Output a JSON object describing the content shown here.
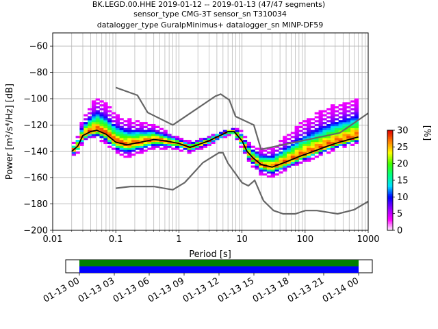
{
  "chart_data": [
    {
      "type": "heatmap",
      "title_lines": [
        "BK.LEGD.00.HHE   2019-01-12 -- 2019-01-13  (47/47 segments)",
        "sensor_type CMG-3T sensor_sn T310034",
        "datalogger_type GuralpMinimus+ datalogger_sn MINP-DF59"
      ],
      "xlabel": "Period [s]",
      "ylabel": "Power [m²/s⁴/Hz] [dB]",
      "xscale": "log",
      "xlim": [
        0.01,
        1000
      ],
      "ylim": [
        -200,
        -50
      ],
      "xticks": [
        {
          "v": 0.01,
          "label": "0.01"
        },
        {
          "v": 0.1,
          "label": "0.1"
        },
        {
          "v": 1,
          "label": "1"
        },
        {
          "v": 10,
          "label": "10"
        },
        {
          "v": 100,
          "label": "100"
        },
        {
          "v": 1000,
          "label": "1000"
        }
      ],
      "yticks": [
        -200,
        -180,
        -160,
        -140,
        -120,
        -100,
        -80,
        -60
      ],
      "grid": true,
      "colorbar": {
        "label": "[%]",
        "range": [
          0,
          30
        ],
        "ticks": [
          0,
          5,
          10,
          15,
          20,
          25,
          30
        ],
        "colors": [
          "#ffffff",
          "#ff00ff",
          "#9000ff",
          "#0000ff",
          "#00e0ff",
          "#00ff80",
          "#40ff00",
          "#ffff00",
          "#ff8000",
          "#e00000"
        ]
      },
      "noise_models": {
        "color": "#666666",
        "high": [
          [
            0.1,
            -91.5
          ],
          [
            0.22,
            -97.4
          ],
          [
            0.32,
            -110.5
          ],
          [
            0.8,
            -120
          ],
          [
            3.8,
            -98
          ],
          [
            4.6,
            -96.5
          ],
          [
            6.3,
            -101
          ],
          [
            7.9,
            -113.5
          ],
          [
            15.4,
            -120
          ],
          [
            20,
            -138.5
          ],
          [
            354.8,
            -126
          ],
          [
            1000,
            -111
          ]
        ],
        "low": [
          [
            0.1,
            -168
          ],
          [
            0.17,
            -166.7
          ],
          [
            0.4,
            -166.7
          ],
          [
            0.8,
            -169.2
          ],
          [
            1.24,
            -163.7
          ],
          [
            2.4,
            -148.6
          ],
          [
            4.3,
            -141.1
          ],
          [
            5,
            -141.1
          ],
          [
            6,
            -149
          ],
          [
            10,
            -163.8
          ],
          [
            12.6,
            -166.2
          ],
          [
            15.9,
            -162.1
          ],
          [
            21.9,
            -177.5
          ],
          [
            31.6,
            -185
          ],
          [
            45,
            -187.5
          ],
          [
            70,
            -187.5
          ],
          [
            101,
            -185
          ],
          [
            154,
            -185
          ],
          [
            328,
            -187.5
          ],
          [
            600,
            -184.4
          ],
          [
            1000,
            -178
          ]
        ]
      },
      "mode_curve": {
        "color": "#000000",
        "points": [
          [
            0.02,
            -140
          ],
          [
            0.025,
            -136
          ],
          [
            0.03,
            -128
          ],
          [
            0.04,
            -125
          ],
          [
            0.05,
            -124
          ],
          [
            0.07,
            -127
          ],
          [
            0.1,
            -133
          ],
          [
            0.15,
            -135
          ],
          [
            0.25,
            -133
          ],
          [
            0.4,
            -131
          ],
          [
            0.6,
            -132
          ],
          [
            1,
            -134
          ],
          [
            1.5,
            -137
          ],
          [
            2,
            -135
          ],
          [
            3,
            -132
          ],
          [
            4,
            -129
          ],
          [
            5,
            -127
          ],
          [
            6,
            -125
          ],
          [
            7.5,
            -125
          ],
          [
            10,
            -132
          ],
          [
            12,
            -140
          ],
          [
            15,
            -145
          ],
          [
            20,
            -150
          ],
          [
            30,
            -152
          ],
          [
            50,
            -148
          ],
          [
            80,
            -144
          ],
          [
            120,
            -141
          ],
          [
            200,
            -137
          ],
          [
            300,
            -134
          ],
          [
            500,
            -131
          ],
          [
            700,
            -129
          ]
        ]
      },
      "distribution": {
        "spread_above_db": [
          [
            0.02,
            4
          ],
          [
            0.05,
            26
          ],
          [
            0.15,
            20
          ],
          [
            0.5,
            10
          ],
          [
            1,
            5
          ],
          [
            2,
            5
          ],
          [
            5,
            3
          ],
          [
            7,
            3
          ],
          [
            10,
            8
          ],
          [
            15,
            10
          ],
          [
            30,
            15
          ],
          [
            100,
            27
          ],
          [
            300,
            30
          ],
          [
            700,
            30
          ]
        ],
        "spread_below_db": [
          [
            0.02,
            5
          ],
          [
            0.05,
            6
          ],
          [
            0.15,
            10
          ],
          [
            0.5,
            7
          ],
          [
            1,
            5
          ],
          [
            2,
            4
          ],
          [
            5,
            3
          ],
          [
            7,
            3
          ],
          [
            10,
            6
          ],
          [
            20,
            8
          ],
          [
            30,
            8
          ],
          [
            100,
            6
          ],
          [
            300,
            5
          ],
          [
            700,
            5
          ]
        ]
      }
    },
    {
      "type": "timeline",
      "xticks": [
        "01-13 00",
        "01-13 03",
        "01-13 06",
        "01-13 09",
        "01-13 12",
        "01-13 15",
        "01-13 18",
        "01-13 21",
        "01-14 00"
      ],
      "bands": [
        {
          "color": "#008000",
          "coverage": "full"
        },
        {
          "color": "#0000ff",
          "coverage": "full"
        }
      ]
    }
  ]
}
